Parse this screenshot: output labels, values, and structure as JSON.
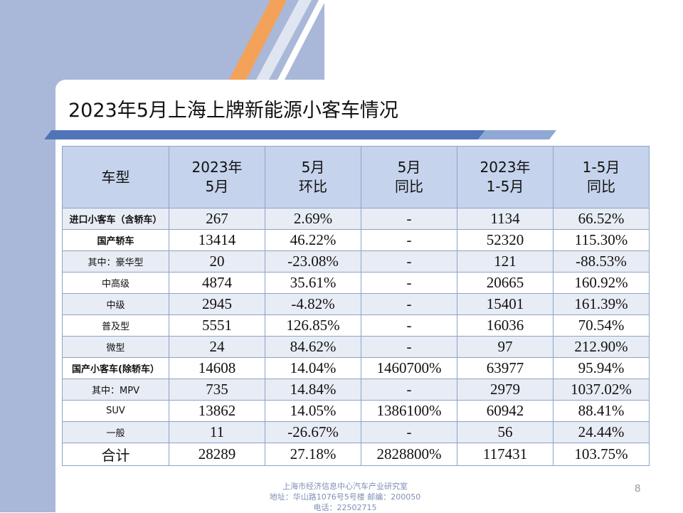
{
  "slide": {
    "title": "2023年5月上海上牌新能源小客车情况",
    "page_number": "8"
  },
  "table": {
    "headers": [
      {
        "line1": "车型",
        "line2": ""
      },
      {
        "line1": "2023年",
        "line2": "5月"
      },
      {
        "line1": "5月",
        "line2": "环比"
      },
      {
        "line1": "5月",
        "line2": "同比"
      },
      {
        "line1": "2023年",
        "line2": "1-5月"
      },
      {
        "line1": "1-5月",
        "line2": "同比"
      }
    ],
    "rows": [
      {
        "label": "进口小客车（含轿车）",
        "cells": [
          "267",
          "2.69%",
          "-",
          "1134",
          "66.52%"
        ]
      },
      {
        "label": "国产轿车",
        "cells": [
          "13414",
          "46.22%",
          "-",
          "52320",
          "115.30%"
        ]
      },
      {
        "label": "其中：豪华型",
        "cells": [
          "20",
          "-23.08%",
          "-",
          "121",
          "-88.53%"
        ]
      },
      {
        "label": "中高级",
        "cells": [
          "4874",
          "35.61%",
          "-",
          "20665",
          "160.92%"
        ]
      },
      {
        "label": "中级",
        "cells": [
          "2945",
          "-4.82%",
          "-",
          "15401",
          "161.39%"
        ]
      },
      {
        "label": "普及型",
        "cells": [
          "5551",
          "126.85%",
          "-",
          "16036",
          "70.54%"
        ]
      },
      {
        "label": "微型",
        "cells": [
          "24",
          "84.62%",
          "-",
          "97",
          "212.90%"
        ]
      },
      {
        "label": "国产小客车(除轿车）",
        "cells": [
          "14608",
          "14.04%",
          "1460700%",
          "63977",
          "95.94%"
        ]
      },
      {
        "label": "其中：MPV",
        "cells": [
          "735",
          "14.84%",
          "-",
          "2979",
          "1037.02%"
        ]
      },
      {
        "label": "SUV",
        "cells": [
          "13862",
          "14.05%",
          "1386100%",
          "60942",
          "88.41%"
        ]
      },
      {
        "label": "一般",
        "cells": [
          "11",
          "-26.67%",
          "-",
          "56",
          "24.44%"
        ]
      },
      {
        "label": "合计",
        "cells": [
          "28289",
          "27.18%",
          "2828800%",
          "117431",
          "103.75%"
        ]
      }
    ]
  },
  "footer": {
    "line1": "上海市经济信息中心汽车产业研究室",
    "line2": "地址：华山路1076号5号楼    邮编：200050",
    "line3": "电话：22502715"
  },
  "colors": {
    "background_panel": "#a9b8d8",
    "accent_orange": "#f4a259",
    "band_blue": "#4f74b8",
    "header_fill": "#c5d3ec",
    "row_stripe": "#e7ecf5"
  }
}
